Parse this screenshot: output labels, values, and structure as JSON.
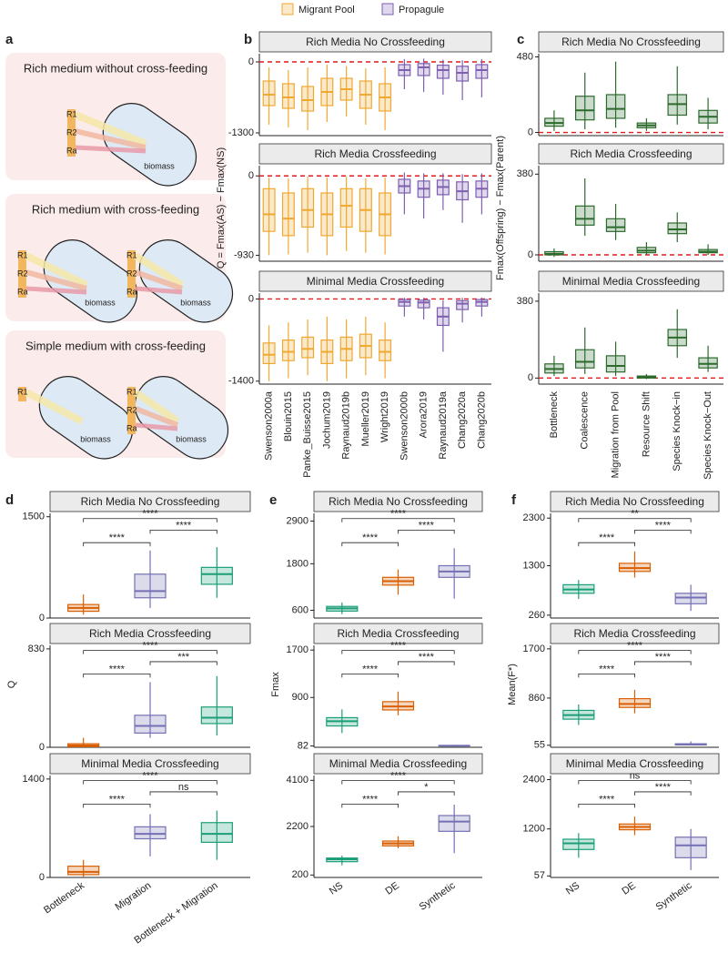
{
  "panel_a": {
    "label": "a",
    "diagrams": [
      {
        "title": "Rich medium without cross-feeding",
        "resources": [
          "R1",
          "R2",
          "Ra"
        ],
        "biomass": [
          "biomass"
        ]
      },
      {
        "title": "Rich medium with cross-feeding",
        "resources": [
          "R1",
          "R2",
          "Ra",
          "R1",
          "R2",
          "Ra"
        ],
        "biomass": [
          "biomass",
          "biomass"
        ]
      },
      {
        "title": "Simple medium with cross-feeding",
        "resources": [
          "R1",
          "R1",
          "R2",
          "Ra"
        ],
        "biomass": [
          "biomass",
          "biomass"
        ]
      }
    ]
  },
  "chart_data": [
    {
      "type": "box",
      "panel": "b",
      "ylabel": "Q = Fmax(AS) − Fmax(NS)",
      "series": [
        {
          "name": "Migrant Pool",
          "color": "#f0a830"
        },
        {
          "name": "Propagule",
          "color": "#7e5fb0"
        }
      ],
      "categories": [
        "Swenson2000a",
        "Blouin2015",
        "Panke_Buisse2015",
        "Jochum2019",
        "Raynaud2019b",
        "Mueller2019",
        "Wright2019",
        "Swenson2000b",
        "Arora2019",
        "Raynaud2019a",
        "Chang2020a",
        "Chang2020b"
      ],
      "facets": [
        {
          "title": "Rich Media No Crossfeeding",
          "ylim": [
            -1350,
            150
          ],
          "yticks": [
            0,
            -1300
          ],
          "hline": 0,
          "series": [
            {
              "values": [
                [
                  -1150,
                  -800,
                  -600,
                  -350,
                  -100
                ],
                [
                  -1200,
                  -850,
                  -650,
                  -400,
                  -150
                ],
                [
                  -1250,
                  -900,
                  -700,
                  -450,
                  -100
                ],
                [
                  -1100,
                  -800,
                  -550,
                  -300,
                  -50
                ],
                [
                  -1000,
                  -700,
                  -500,
                  -300,
                  -80
                ],
                [
                  -1150,
                  -850,
                  -600,
                  -350,
                  -120
                ],
                [
                  -1250,
                  -900,
                  -650,
                  -400,
                  -100
                ],
                null,
                null,
                null,
                null,
                null
              ]
            },
            {
              "values": [
                null,
                null,
                null,
                null,
                null,
                null,
                null,
                [
                  -500,
                  -250,
                  -150,
                  -50,
                  50
                ],
                [
                  -550,
                  -250,
                  -100,
                  -30,
                  60
                ],
                [
                  -600,
                  -300,
                  -150,
                  -60,
                  40
                ],
                [
                  -700,
                  -350,
                  -200,
                  -80,
                  30
                ],
                [
                  -650,
                  -300,
                  -150,
                  -50,
                  50
                ]
              ]
            }
          ]
        },
        {
          "title": "Rich Media Crossfeeding",
          "ylim": [
            -1000,
            120
          ],
          "yticks": [
            0,
            -930
          ],
          "hline": 0,
          "series": [
            {
              "values": [
                [
                  -930,
                  -650,
                  -450,
                  -150,
                  -20
                ],
                [
                  -920,
                  -700,
                  -500,
                  -200,
                  -30
                ],
                [
                  -900,
                  -600,
                  -400,
                  -150,
                  -10
                ],
                [
                  -930,
                  -700,
                  -450,
                  -200,
                  -20
                ],
                [
                  -880,
                  -600,
                  -350,
                  -150,
                  -10
                ],
                [
                  -900,
                  -650,
                  -400,
                  -150,
                  -30
                ],
                [
                  -920,
                  -700,
                  -450,
                  -200,
                  -20
                ],
                null,
                null,
                null,
                null,
                null
              ]
            },
            {
              "values": [
                null,
                null,
                null,
                null,
                null,
                null,
                null,
                [
                  -450,
                  -200,
                  -120,
                  -40,
                  40
                ],
                [
                  -500,
                  -250,
                  -150,
                  -60,
                  30
                ],
                [
                  -400,
                  -220,
                  -130,
                  -50,
                  30
                ],
                [
                  -550,
                  -280,
                  -180,
                  -70,
                  20
                ],
                [
                  -450,
                  -250,
                  -150,
                  -60,
                  30
                ]
              ]
            }
          ]
        },
        {
          "title": "Minimal Media Crossfeeding",
          "ylim": [
            -1450,
            100
          ],
          "yticks": [
            0,
            -1400
          ],
          "hline": 0,
          "series": [
            {
              "values": [
                [
                  -1400,
                  -1100,
                  -950,
                  -750,
                  -450
                ],
                [
                  -1350,
                  -1050,
                  -900,
                  -700,
                  -400
                ],
                [
                  -1300,
                  -1000,
                  -850,
                  -650,
                  -350
                ],
                [
                  -1400,
                  -1100,
                  -900,
                  -700,
                  -300
                ],
                [
                  -1350,
                  -1050,
                  -850,
                  -650,
                  -350
                ],
                [
                  -1300,
                  -1000,
                  -800,
                  -600,
                  -300
                ],
                [
                  -1350,
                  -1050,
                  -900,
                  -700,
                  -400
                ],
                null,
                null,
                null,
                null,
                null
              ]
            },
            {
              "values": [
                null,
                null,
                null,
                null,
                null,
                null,
                null,
                [
                  -300,
                  -120,
                  -50,
                  -10,
                  20
                ],
                [
                  -350,
                  -150,
                  -60,
                  -20,
                  20
                ],
                [
                  -900,
                  -450,
                  -300,
                  -150,
                  -20
                ],
                [
                  -400,
                  -180,
                  -80,
                  -30,
                  20
                ],
                [
                  -300,
                  -120,
                  -50,
                  -10,
                  20
                ]
              ]
            }
          ]
        }
      ]
    },
    {
      "type": "box",
      "panel": "c",
      "ylabel": "Fmax(Offspring) − Fmax(Parent)",
      "color": "#2d6a2e",
      "categories": [
        "Bottleneck",
        "Coalescence",
        "Migration from Pool",
        "Resource Shift",
        "Species Knock−in",
        "Species Knock−Out"
      ],
      "facets": [
        {
          "title": "Rich Media No Crossfeeding",
          "ylim": [
            -20,
            500
          ],
          "yticks": [
            0,
            480
          ],
          "hline": 0,
          "values": [
            [
              10,
              40,
              60,
              90,
              140
            ],
            [
              20,
              80,
              140,
              230,
              380
            ],
            [
              30,
              90,
              150,
              240,
              450
            ],
            [
              10,
              30,
              45,
              60,
              90
            ],
            [
              50,
              110,
              180,
              240,
              420
            ],
            [
              20,
              60,
              100,
              140,
              220
            ]
          ]
        },
        {
          "title": "Rich Media Crossfeeding",
          "ylim": [
            -30,
            420
          ],
          "yticks": [
            0,
            380
          ],
          "hline": 0,
          "values": [
            [
              -10,
              0,
              5,
              15,
              30
            ],
            [
              90,
              140,
              170,
              230,
              360
            ],
            [
              70,
              110,
              130,
              170,
              240
            ],
            [
              0,
              10,
              20,
              35,
              60
            ],
            [
              60,
              100,
              120,
              150,
              200
            ],
            [
              0,
              10,
              15,
              25,
              50
            ]
          ]
        },
        {
          "title": "Minimal Media Crossfeeding",
          "ylim": [
            -30,
            420
          ],
          "yticks": [
            0,
            380
          ],
          "hline": 0,
          "values": [
            [
              10,
              25,
              45,
              70,
              110
            ],
            [
              20,
              50,
              80,
              140,
              250
            ],
            [
              10,
              30,
              60,
              110,
              180
            ],
            [
              -5,
              0,
              5,
              10,
              20
            ],
            [
              100,
              160,
              200,
              240,
              340
            ],
            [
              30,
              50,
              70,
              100,
              160
            ]
          ]
        }
      ]
    },
    {
      "type": "box",
      "panel": "d",
      "ylabel": "Q",
      "colors": [
        "#d95f02",
        "#7570b3",
        "#1b9e77"
      ],
      "categories": [
        "Bottleneck",
        "Migration",
        "Bottleneck + Migration"
      ],
      "facets": [
        {
          "title": "Rich Media No Crossfeeding",
          "ylim": [
            0,
            1550
          ],
          "yticks": [
            0,
            1500
          ],
          "significance": [
            "****",
            "****",
            "****"
          ],
          "values": [
            [
              50,
              100,
              150,
              200,
              350
            ],
            [
              150,
              300,
              400,
              650,
              1000
            ],
            [
              300,
              500,
              650,
              750,
              1050
            ]
          ]
        },
        {
          "title": "Rich Media Crossfeeding",
          "ylim": [
            0,
            860
          ],
          "yticks": [
            0,
            830
          ],
          "significance": [
            "****",
            "****",
            "***"
          ],
          "values": [
            [
              0,
              5,
              15,
              30,
              80
            ],
            [
              80,
              120,
              180,
              270,
              550
            ],
            [
              100,
              200,
              250,
              340,
              600
            ]
          ]
        },
        {
          "title": "Minimal Media Crossfeeding",
          "ylim": [
            0,
            1450
          ],
          "yticks": [
            0,
            1400
          ],
          "significance": [
            "****",
            "****",
            "ns"
          ],
          "values": [
            [
              0,
              40,
              80,
              160,
              250
            ],
            [
              300,
              550,
              620,
              720,
              900
            ],
            [
              250,
              500,
              620,
              780,
              950
            ]
          ]
        }
      ]
    },
    {
      "type": "box",
      "panel": "e",
      "ylabel": "Fmax",
      "colors": [
        "#1b9e77",
        "#d95f02",
        "#7570b3"
      ],
      "categories": [
        "NS",
        "DE",
        "Synthetic"
      ],
      "facets": [
        {
          "title": "Rich Media No Crossfeeding",
          "ylim": [
            400,
            3100
          ],
          "yticks": [
            600,
            1800,
            2900
          ],
          "significance": [
            "****",
            "****",
            "****"
          ],
          "values": [
            [
              500,
              580,
              650,
              700,
              800
            ],
            [
              1000,
              1250,
              1350,
              1450,
              1650
            ],
            [
              900,
              1450,
              1600,
              1750,
              2200
            ]
          ]
        },
        {
          "title": "Rich Media Crossfeeding",
          "ylim": [
            60,
            1780
          ],
          "yticks": [
            82,
            900,
            1700
          ],
          "significance": [
            "****",
            "****",
            "****"
          ],
          "values": [
            [
              300,
              420,
              500,
              560,
              700
            ],
            [
              600,
              690,
              750,
              830,
              1000
            ],
            [
              82,
              84,
              86,
              88,
              100
            ]
          ]
        },
        {
          "title": "Minimal Media Crossfeeding",
          "ylim": [
            100,
            4300
          ],
          "yticks": [
            200,
            2200,
            4100
          ],
          "significance": [
            "****",
            "****",
            "*"
          ],
          "values": [
            [
              600,
              750,
              850,
              900,
              1000
            ],
            [
              1300,
              1400,
              1500,
              1600,
              1800
            ],
            [
              1100,
              2000,
              2400,
              2650,
              3100
            ]
          ]
        }
      ]
    },
    {
      "type": "box",
      "panel": "f",
      "ylabel": "Mean(F*)",
      "colors": [
        "#1b9e77",
        "#d95f02",
        "#7570b3"
      ],
      "categories": [
        "NS",
        "DE",
        "Synthetic"
      ],
      "facets": [
        {
          "title": "Rich Media No Crossfeeding",
          "ylim": [
            200,
            2400
          ],
          "yticks": [
            260,
            1300,
            2300
          ],
          "significance": [
            "****",
            "**",
            "****"
          ],
          "values": [
            [
              600,
              720,
              800,
              900,
              1000
            ],
            [
              1050,
              1180,
              1250,
              1350,
              1600
            ],
            [
              350,
              500,
              630,
              720,
              900
            ]
          ]
        },
        {
          "title": "Rich Media Crossfeeding",
          "ylim": [
            20,
            1760
          ],
          "yticks": [
            55,
            860,
            1700
          ],
          "significance": [
            "****",
            "****",
            "****"
          ],
          "values": [
            [
              400,
              500,
              570,
              650,
              750
            ],
            [
              600,
              700,
              760,
              850,
              1000
            ],
            [
              55,
              60,
              70,
              80,
              120
            ]
          ]
        },
        {
          "title": "Minimal Media Crossfeeding",
          "ylim": [
            20,
            2500
          ],
          "yticks": [
            57,
            1200,
            2400
          ],
          "significance": [
            "****",
            "ns",
            "****"
          ],
          "values": [
            [
              500,
              700,
              850,
              950,
              1100
            ],
            [
              1050,
              1180,
              1250,
              1320,
              1500
            ],
            [
              200,
              500,
              800,
              1000,
              1200
            ]
          ]
        }
      ]
    }
  ]
}
